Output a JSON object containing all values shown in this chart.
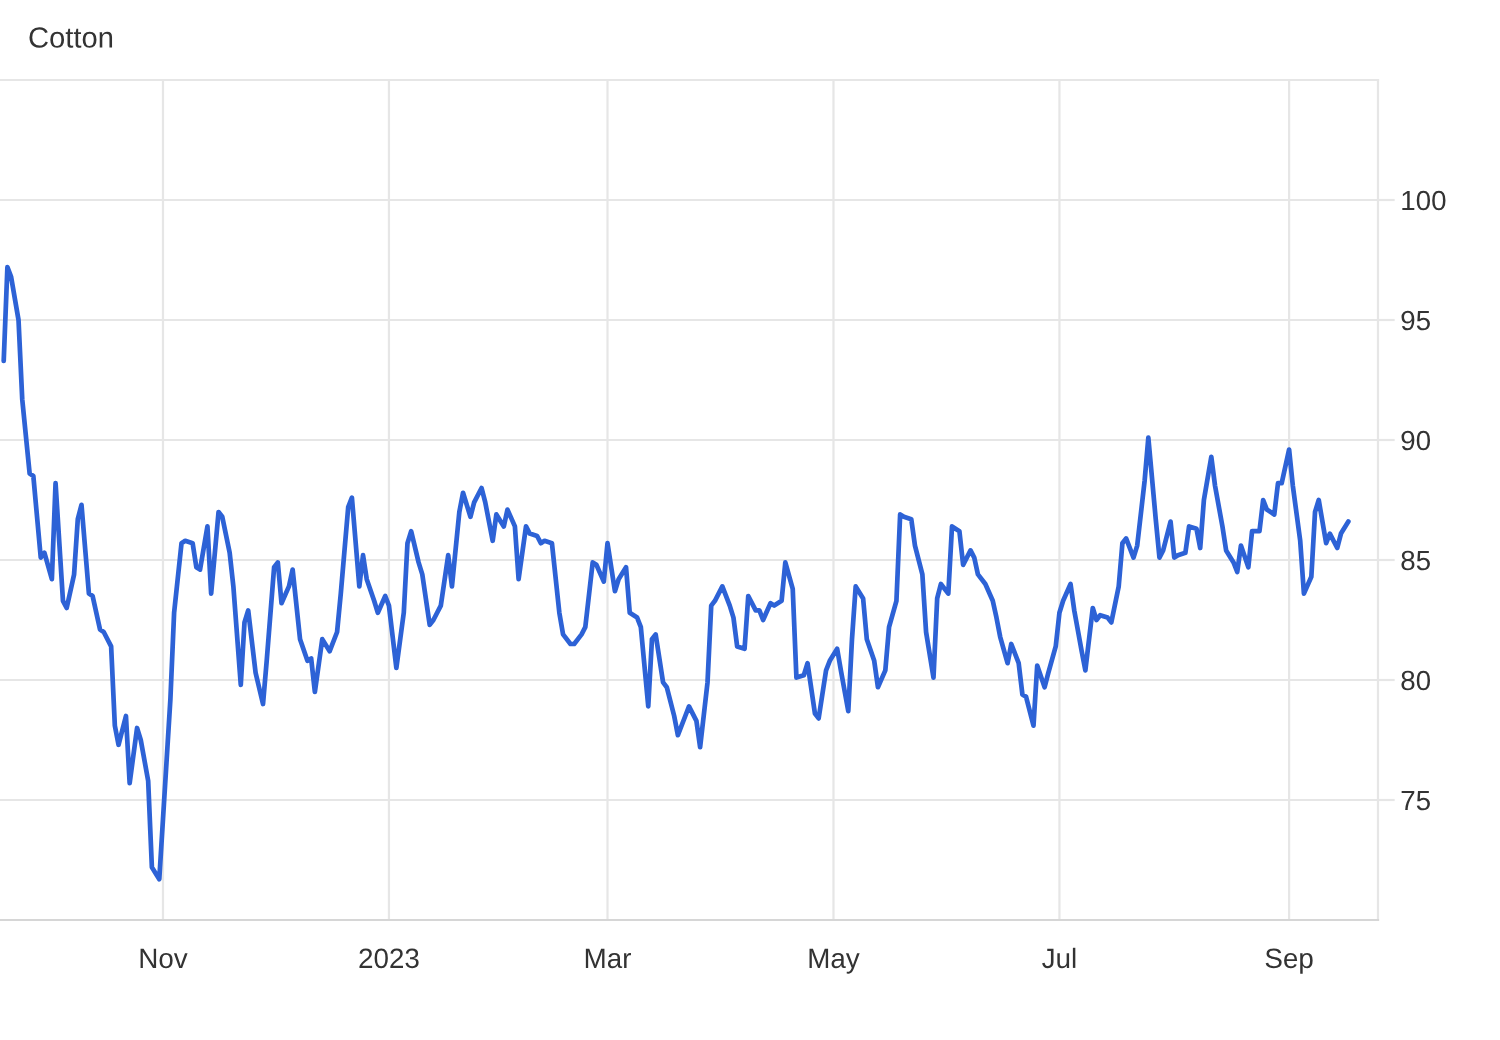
{
  "chart_data": {
    "type": "line",
    "title": "Cotton",
    "x": [
      "2022-09-19",
      "2022-09-20",
      "2022-09-21",
      "2022-09-23",
      "2022-09-24",
      "2022-09-26",
      "2022-09-27",
      "2022-09-29",
      "2022-09-30",
      "2022-10-02",
      "2022-10-03",
      "2022-10-05",
      "2022-10-06",
      "2022-10-08",
      "2022-10-09",
      "2022-10-10",
      "2022-10-12",
      "2022-10-13",
      "2022-10-15",
      "2022-10-16",
      "2022-10-18",
      "2022-10-19",
      "2022-10-20",
      "2022-10-22",
      "2022-10-23",
      "2022-10-25",
      "2022-10-26",
      "2022-10-28",
      "2022-10-29",
      "2022-10-31",
      "2022-11-01",
      "2022-11-03",
      "2022-11-04",
      "2022-11-06",
      "2022-11-07",
      "2022-11-09",
      "2022-11-10",
      "2022-11-11",
      "2022-11-13",
      "2022-11-14",
      "2022-11-16",
      "2022-11-17",
      "2022-11-19",
      "2022-11-20",
      "2022-11-22",
      "2022-11-23",
      "2022-11-24",
      "2022-11-26",
      "2022-11-28",
      "2022-11-29",
      "2022-12-01",
      "2022-12-02",
      "2022-12-03",
      "2022-12-05",
      "2022-12-06",
      "2022-12-08",
      "2022-12-10",
      "2022-12-11",
      "2022-12-12",
      "2022-12-14",
      "2022-12-16",
      "2022-12-18",
      "2022-12-19",
      "2022-12-21",
      "2022-12-22",
      "2022-12-24",
      "2022-12-25",
      "2022-12-26",
      "2022-12-28",
      "2022-12-29",
      "2022-12-31",
      "2023-01-01",
      "2023-01-03",
      "2023-01-05",
      "2023-01-06",
      "2023-01-07",
      "2023-01-09",
      "2023-01-10",
      "2023-01-12",
      "2023-01-13",
      "2023-01-15",
      "2023-01-17",
      "2023-01-18",
      "2023-01-20",
      "2023-01-21",
      "2023-01-23",
      "2023-01-24",
      "2023-01-26",
      "2023-01-27",
      "2023-01-29",
      "2023-01-30",
      "2023-02-01",
      "2023-02-02",
      "2023-02-04",
      "2023-02-05",
      "2023-02-07",
      "2023-02-08",
      "2023-02-10",
      "2023-02-11",
      "2023-02-12",
      "2023-02-14",
      "2023-02-16",
      "2023-02-17",
      "2023-02-19",
      "2023-02-20",
      "2023-02-22",
      "2023-02-23",
      "2023-02-25",
      "2023-02-26",
      "2023-02-28",
      "2023-03-01",
      "2023-03-03",
      "2023-03-04",
      "2023-03-06",
      "2023-03-07",
      "2023-03-09",
      "2023-03-10",
      "2023-03-12",
      "2023-03-13",
      "2023-03-14",
      "2023-03-16",
      "2023-03-17",
      "2023-03-19",
      "2023-03-20",
      "2023-03-22",
      "2023-03-23",
      "2023-03-25",
      "2023-03-26",
      "2023-03-28",
      "2023-03-29",
      "2023-03-30",
      "2023-04-01",
      "2023-04-03",
      "2023-04-04",
      "2023-04-05",
      "2023-04-07",
      "2023-04-08",
      "2023-04-10",
      "2023-04-11",
      "2023-04-12",
      "2023-04-14",
      "2023-04-15",
      "2023-04-17",
      "2023-04-18",
      "2023-04-20",
      "2023-04-21",
      "2023-04-23",
      "2023-04-24",
      "2023-04-26",
      "2023-04-27",
      "2023-04-29",
      "2023-04-30",
      "2023-05-02",
      "2023-05-03",
      "2023-05-05",
      "2023-05-06",
      "2023-05-07",
      "2023-05-09",
      "2023-05-10",
      "2023-05-12",
      "2023-05-13",
      "2023-05-15",
      "2023-05-16",
      "2023-05-18",
      "2023-05-19",
      "2023-05-20",
      "2023-05-22",
      "2023-05-23",
      "2023-05-25",
      "2023-05-26",
      "2023-05-28",
      "2023-05-29",
      "2023-05-30",
      "2023-06-01",
      "2023-06-02",
      "2023-06-04",
      "2023-06-05",
      "2023-06-07",
      "2023-06-08",
      "2023-06-09",
      "2023-06-11",
      "2023-06-13",
      "2023-06-14",
      "2023-06-15",
      "2023-06-17",
      "2023-06-18",
      "2023-06-20",
      "2023-06-21",
      "2023-06-22",
      "2023-06-24",
      "2023-06-25",
      "2023-06-27",
      "2023-06-28",
      "2023-06-30",
      "2023-07-01",
      "2023-07-02",
      "2023-07-04",
      "2023-07-05",
      "2023-07-07",
      "2023-07-08",
      "2023-07-10",
      "2023-07-11",
      "2023-07-12",
      "2023-07-14",
      "2023-07-15",
      "2023-07-17",
      "2023-07-18",
      "2023-07-19",
      "2023-07-21",
      "2023-07-22",
      "2023-07-24",
      "2023-07-25",
      "2023-07-27",
      "2023-07-28",
      "2023-07-29",
      "2023-07-31",
      "2023-08-01",
      "2023-08-02",
      "2023-08-04",
      "2023-08-05",
      "2023-08-07",
      "2023-08-08",
      "2023-08-09",
      "2023-08-11",
      "2023-08-12",
      "2023-08-14",
      "2023-08-15",
      "2023-08-17",
      "2023-08-18",
      "2023-08-19",
      "2023-08-21",
      "2023-08-22",
      "2023-08-24",
      "2023-08-25",
      "2023-08-26",
      "2023-08-28",
      "2023-08-29",
      "2023-08-30",
      "2023-09-01",
      "2023-09-02",
      "2023-09-04",
      "2023-09-05",
      "2023-09-07",
      "2023-09-08",
      "2023-09-09",
      "2023-09-11",
      "2023-09-12",
      "2023-09-14",
      "2023-09-15",
      "2023-09-17"
    ],
    "series": [
      {
        "color": "#2d62d6",
        "values": [
          93.3,
          97.2,
          96.8,
          95.0,
          91.7,
          88.6,
          88.5,
          85.1,
          85.3,
          84.2,
          88.2,
          83.3,
          83.0,
          84.4,
          86.7,
          87.3,
          83.6,
          83.5,
          82.1,
          82.0,
          81.4,
          78.1,
          77.3,
          78.5,
          75.7,
          78.0,
          77.5,
          75.8,
          72.2,
          71.7,
          74.2,
          79.2,
          82.8,
          85.7,
          85.8,
          85.7,
          84.7,
          84.6,
          86.4,
          83.6,
          87.0,
          86.8,
          85.3,
          83.9,
          79.8,
          82.4,
          82.9,
          80.3,
          79.0,
          80.8,
          84.7,
          84.9,
          83.2,
          83.9,
          84.6,
          81.7,
          80.8,
          80.9,
          79.5,
          81.7,
          81.2,
          82.0,
          83.6,
          87.2,
          87.6,
          83.9,
          85.2,
          84.2,
          83.3,
          82.8,
          83.5,
          83.1,
          80.5,
          82.8,
          85.7,
          86.2,
          84.9,
          84.4,
          82.3,
          82.5,
          83.1,
          85.2,
          83.9,
          87.0,
          87.8,
          86.8,
          87.4,
          88.0,
          87.4,
          85.8,
          86.9,
          86.4,
          87.1,
          86.4,
          84.2,
          86.4,
          86.1,
          86.0,
          85.7,
          85.8,
          85.7,
          82.8,
          81.9,
          81.5,
          81.5,
          81.9,
          82.2,
          84.9,
          84.8,
          84.1,
          85.7,
          83.7,
          84.2,
          84.7,
          82.8,
          82.6,
          82.2,
          78.9,
          81.7,
          81.9,
          79.9,
          79.7,
          78.5,
          77.7,
          78.5,
          78.9,
          78.3,
          77.2,
          79.9,
          83.1,
          83.3,
          83.9,
          83.1,
          82.6,
          81.4,
          81.3,
          83.5,
          82.9,
          82.9,
          82.5,
          83.2,
          83.1,
          83.3,
          84.9,
          83.8,
          80.1,
          80.2,
          80.7,
          78.6,
          78.4,
          80.4,
          80.8,
          81.3,
          80.4,
          78.7,
          81.7,
          83.9,
          83.4,
          81.7,
          80.8,
          79.7,
          80.4,
          82.2,
          83.3,
          86.9,
          86.8,
          86.7,
          85.6,
          84.4,
          82.0,
          80.1,
          83.4,
          84.0,
          83.6,
          86.4,
          86.2,
          84.8,
          85.4,
          85.1,
          84.4,
          84.0,
          83.3,
          82.6,
          81.8,
          80.7,
          81.5,
          80.7,
          79.4,
          79.3,
          78.1,
          80.6,
          79.7,
          80.3,
          81.4,
          82.8,
          83.3,
          84.0,
          82.9,
          81.2,
          80.4,
          83.0,
          82.5,
          82.7,
          82.6,
          82.4,
          83.9,
          85.7,
          85.9,
          85.1,
          85.6,
          88.3,
          90.1,
          86.7,
          85.1,
          85.4,
          86.6,
          85.1,
          85.2,
          85.3,
          86.4,
          86.3,
          85.5,
          87.5,
          89.3,
          88.1,
          86.4,
          85.4,
          84.9,
          84.5,
          85.6,
          84.7,
          86.2,
          86.2,
          87.5,
          87.1,
          86.9,
          88.2,
          88.2,
          89.6,
          88.1,
          85.8,
          83.6,
          84.3,
          87.0,
          87.5,
          85.7,
          86.1,
          85.5,
          86.1,
          86.6
        ]
      }
    ],
    "xlim": [
      "2022-09-18",
      "2023-09-25"
    ],
    "xticks": [
      {
        "value": "2022-11-01",
        "label": "Nov"
      },
      {
        "value": "2023-01-01",
        "label": "2023"
      },
      {
        "value": "2023-03-01",
        "label": "Mar"
      },
      {
        "value": "2023-05-01",
        "label": "May"
      },
      {
        "value": "2023-07-01",
        "label": "Jul"
      },
      {
        "value": "2023-09-01",
        "label": "Sep"
      }
    ],
    "ylim": [
      70,
      105
    ],
    "yticks": [
      75,
      80,
      85,
      90,
      95,
      100
    ],
    "grid": true
  }
}
